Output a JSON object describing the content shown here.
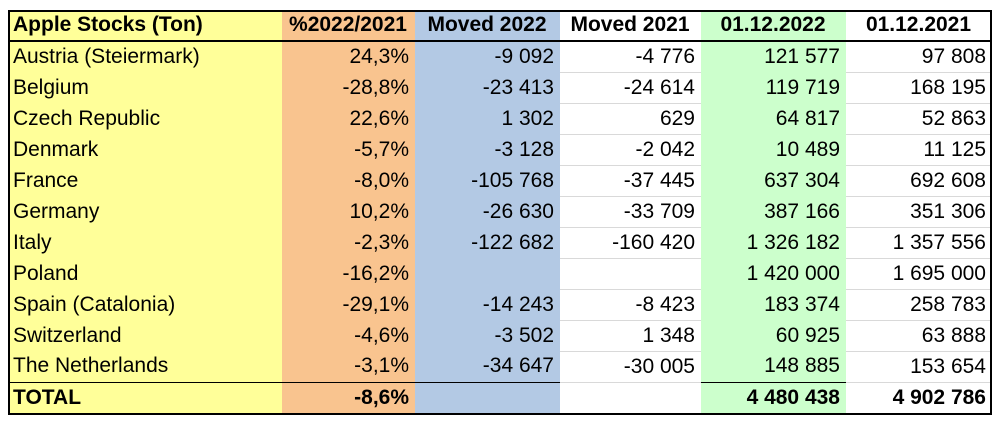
{
  "table": {
    "headers": [
      "Apple Stocks (Ton)",
      "%2022/2021",
      "Moved 2022",
      "Moved 2021",
      "01.12.2022",
      "01.12.2021"
    ],
    "rows": [
      [
        "Austria (Steiermark)",
        "24,3%",
        "-9 092",
        "-4 776",
        "121 577",
        "97 808"
      ],
      [
        "Belgium",
        "-28,8%",
        "-23 413",
        "-24 614",
        "119 719",
        "168 195"
      ],
      [
        "Czech Republic",
        "22,6%",
        "1 302",
        "629",
        "64 817",
        "52 863"
      ],
      [
        "Denmark",
        "-5,7%",
        "-3 128",
        "-2 042",
        "10 489",
        "11 125"
      ],
      [
        "France",
        "-8,0%",
        "-105 768",
        "-37 445",
        "637 304",
        "692 608"
      ],
      [
        "Germany",
        "10,2%",
        "-26 630",
        "-33 709",
        "387 166",
        "351 306"
      ],
      [
        "Italy",
        "-2,3%",
        "-122 682",
        "-160 420",
        "1 326 182",
        "1 357 556"
      ],
      [
        "Poland",
        "-16,2%",
        "",
        "",
        "1 420 000",
        "1 695 000"
      ],
      [
        "Spain (Catalonia)",
        "-29,1%",
        "-14 243",
        "-8 423",
        "183 374",
        "258 783"
      ],
      [
        "Switzerland",
        "-4,6%",
        "-3 502",
        "1 348",
        "60 925",
        "63 888"
      ],
      [
        "The Netherlands",
        "-3,1%",
        "-34 647",
        "-30 005",
        "148 885",
        "153 654"
      ]
    ],
    "total": [
      "TOTAL",
      "-8,6%",
      "",
      "",
      "4 480 438",
      "4 902 786"
    ]
  },
  "colors": {
    "country_column": "#ffff99",
    "percent_column": "#f9c48f",
    "moved_2022_column": "#b3c9e4",
    "stock_2022_column": "#ccffcc"
  }
}
